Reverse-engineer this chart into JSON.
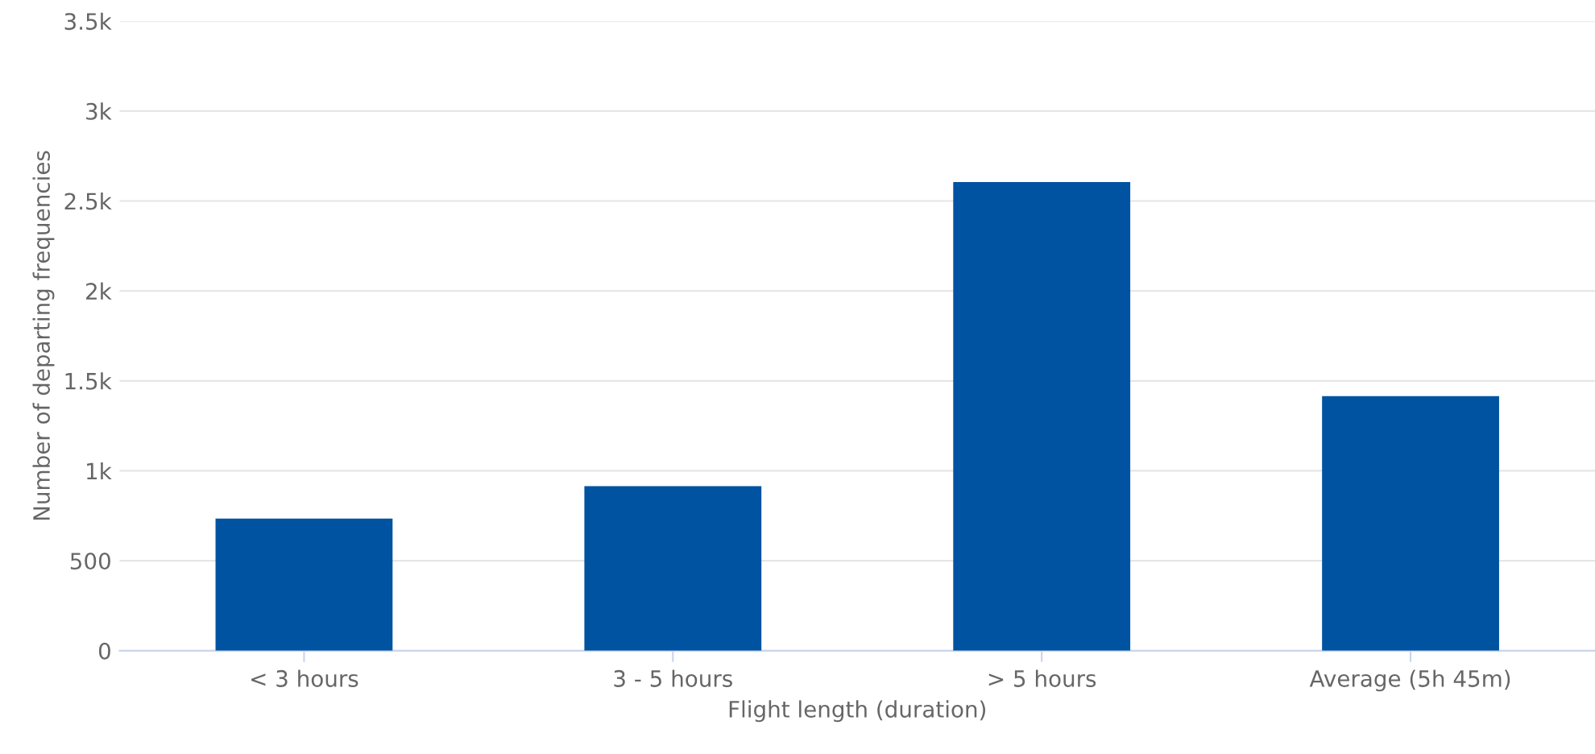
{
  "chart_data": {
    "type": "bar",
    "xlabel": "Flight length (duration)",
    "ylabel": "Number of departing frequencies",
    "categories": [
      "< 3 hours",
      "3 - 5 hours",
      "> 5 hours",
      "Average (5h 45m)"
    ],
    "values": [
      735,
      915,
      2605,
      1415
    ],
    "color": "#0053a1",
    "ylim": [
      0,
      3500
    ],
    "yticks": [
      0,
      500,
      {
        "value": 1000,
        "label": "1k"
      },
      {
        "value": 1500,
        "label": "1.5k"
      },
      {
        "value": 2000,
        "label": "2k"
      },
      {
        "value": 2500,
        "label": "2.5k"
      },
      {
        "value": 3000,
        "label": "3k"
      },
      {
        "value": 3500,
        "label": "3.5k"
      }
    ],
    "grid": "y",
    "legend": false
  }
}
